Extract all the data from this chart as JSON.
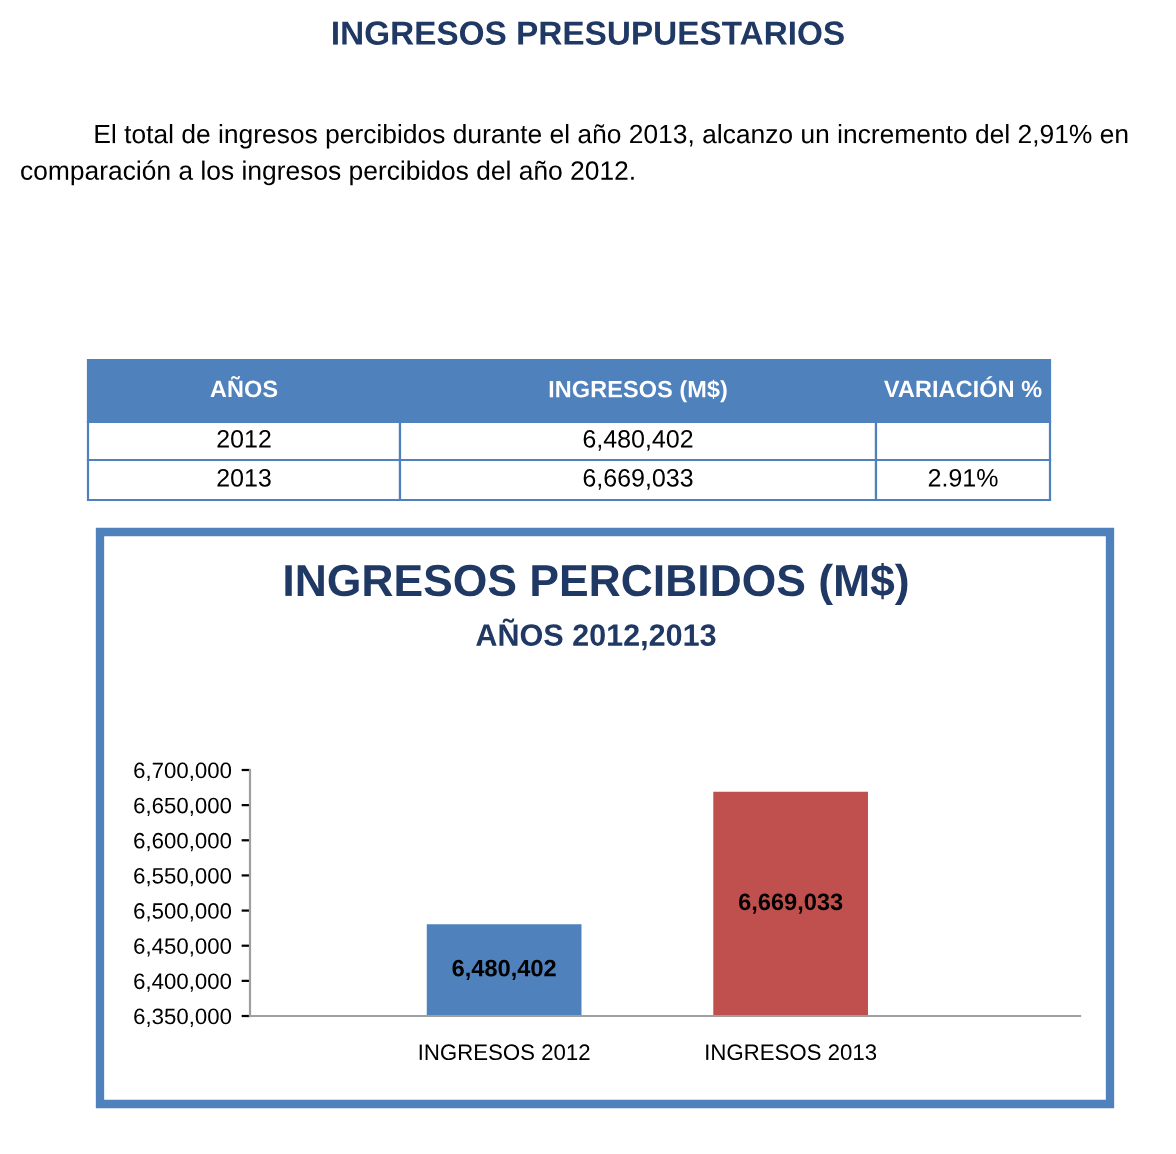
{
  "chart_data": {
    "type": "bar",
    "title": "INGRESOS PERCIBIDOS (M$)",
    "subtitle": "AÑOS 2012,2013",
    "categories": [
      "INGRESOS 2012",
      "INGRESOS 2013"
    ],
    "values": [
      6480402,
      6669033
    ],
    "colors": [
      "#4f81bd",
      "#c0504d"
    ],
    "ylim": [
      6350000,
      6700000
    ],
    "yticks": [
      {
        "value": 6350000,
        "label": "6,350,000"
      },
      {
        "value": 6400000,
        "label": "6,400,000"
      },
      {
        "value": 6450000,
        "label": "6,450,000"
      },
      {
        "value": 6500000,
        "label": "6,500,000"
      },
      {
        "value": 6550000,
        "label": "6,550,000"
      },
      {
        "value": 6600000,
        "label": "6,600,000"
      },
      {
        "value": 6650000,
        "label": "6,650,000"
      },
      {
        "value": 6700000,
        "label": "6,700,000"
      }
    ],
    "value_labels": [
      "6,480,402",
      "6,669,033"
    ],
    "grid": false,
    "legend": false,
    "annotations": [
      "INGRESOS PRESUPUESTARIOS",
      "El total de ingresos percibidos durante el año 2013, alcanzo un incremento del 2,91% en comparación a los ingresos percibidos del año 2012.",
      "AÑOS",
      "INGRESOS (M$)",
      "VARIACIÓN %",
      "2012",
      "6,480,402",
      "2013",
      "6,669,033",
      "2.91%"
    ]
  }
}
